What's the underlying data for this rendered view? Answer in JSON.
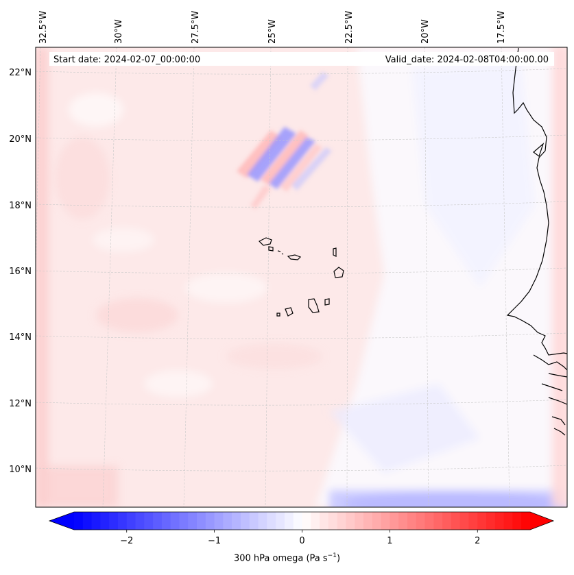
{
  "map": {
    "start_date": "Start date: 2024-02-07_00:00:00",
    "valid_date": "Valid_date: 2024-02-08T04:00:00.00",
    "lon_labels": [
      "32.5°W",
      "30°W",
      "27.5°W",
      "25°W",
      "22.5°W",
      "20°W",
      "17.5°W"
    ],
    "lat_labels": [
      "22°N",
      "20°N",
      "18°N",
      "16°N",
      "14°N",
      "12°N",
      "10°N"
    ],
    "field": "300 hPa omega"
  },
  "colorbar": {
    "ticks": [
      "−2",
      "−1",
      "0",
      "1",
      "2"
    ],
    "tick_values": [
      -2,
      -1,
      0,
      1,
      2
    ],
    "range": [
      -2.6,
      2.6
    ],
    "label_main": "300 hPa omega (Pa s",
    "label_exp": "−1",
    "label_close": ")",
    "colors": {
      "neg": "#0000ff",
      "mid": "#ffffff",
      "pos": "#ff0000"
    }
  }
}
